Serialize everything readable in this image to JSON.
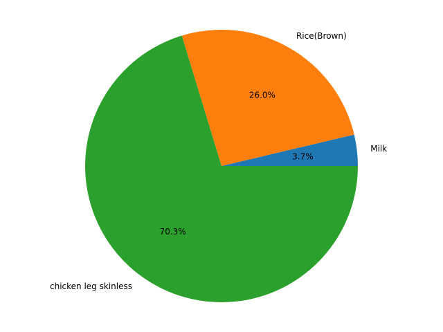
{
  "chart_data": {
    "type": "pie",
    "labels": [
      "Milk",
      "Rice(Brown)",
      "chicken leg skinless"
    ],
    "values": [
      3.7,
      26.0,
      70.3
    ],
    "percent_labels": [
      "3.7%",
      "26.0%",
      "70.3%"
    ],
    "colors": [
      "#1f77b4",
      "#ff7f0e",
      "#2ca02c"
    ],
    "start_angle_deg": 0,
    "direction": "counterclockwise",
    "legend": "none"
  }
}
